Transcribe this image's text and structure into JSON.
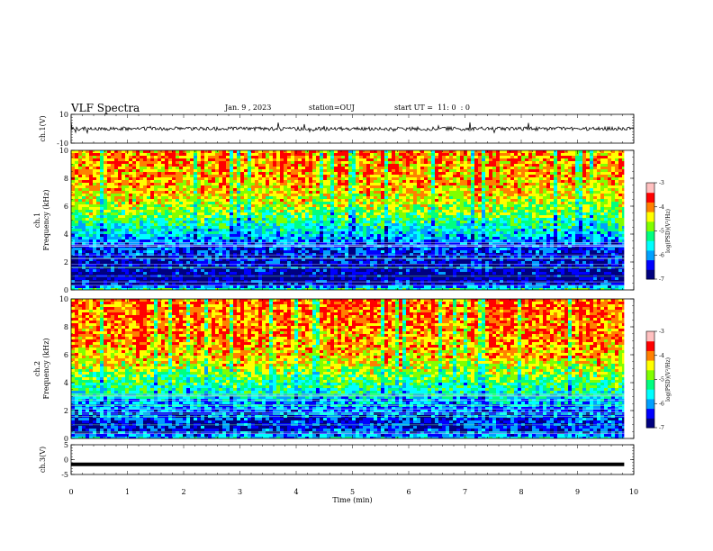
{
  "header": {
    "title": "VLF Spectra",
    "date": "Jan. 9 , 2023",
    "station": "station=OUJ",
    "start": "start UT =  11: 0  : 0"
  },
  "colors": {
    "spectrum": [
      "#000080",
      "#0000ff",
      "#00a0ff",
      "#00ffff",
      "#00ff80",
      "#80ff00",
      "#ffff00",
      "#ff8000",
      "#ff0000",
      "#ffc0c0"
    ],
    "trace": "#000000",
    "frame": "#000000"
  },
  "chart_data": [
    {
      "type": "line",
      "ylabel": "ch.1(V)",
      "ylim": [
        -10,
        10
      ],
      "y_ticks": [
        "10",
        "-10"
      ],
      "x_range": [
        0,
        10
      ],
      "signal_level": 0,
      "signal_range": [
        -10,
        10
      ]
    },
    {
      "type": "heatmap",
      "ylabel": "ch.1\nFrequency (kHz)",
      "ylim": [
        0,
        10
      ],
      "y_ticks": [
        "0",
        "2",
        "4",
        "6",
        "8",
        "10"
      ],
      "x_range": [
        0,
        9.83
      ],
      "power_profile": [
        {
          "f": 0,
          "log_psd": -4.6
        },
        {
          "f": 0.5,
          "log_psd": -6.6
        },
        {
          "f": 1,
          "log_psd": -6.8
        },
        {
          "f": 2,
          "log_psd": -6.5
        },
        {
          "f": 3,
          "log_psd": -6.3
        },
        {
          "f": 4,
          "log_psd": -5.7
        },
        {
          "f": 5,
          "log_psd": -5.1
        },
        {
          "f": 6,
          "log_psd": -4.5
        },
        {
          "f": 7,
          "log_psd": -4.1
        },
        {
          "f": 8,
          "log_psd": -3.9
        },
        {
          "f": 10,
          "log_psd": -3.8
        }
      ],
      "colorbar": {
        "label": "log(PSD)(V²/Hz)",
        "range": [
          -7,
          -3
        ],
        "ticks": [
          "-3",
          "-4",
          "-5",
          "-6",
          "-7"
        ]
      }
    },
    {
      "type": "heatmap",
      "ylabel": "ch.2\nFrequency (kHz)",
      "ylim": [
        0,
        10
      ],
      "y_ticks": [
        "0",
        "2",
        "4",
        "6",
        "8",
        "10"
      ],
      "x_range": [
        0,
        9.83
      ],
      "power_profile": [
        {
          "f": 0,
          "log_psd": -5.4
        },
        {
          "f": 0.5,
          "log_psd": -6.2
        },
        {
          "f": 1,
          "log_psd": -6.4
        },
        {
          "f": 2,
          "log_psd": -6.0
        },
        {
          "f": 3,
          "log_psd": -5.6
        },
        {
          "f": 4,
          "log_psd": -5.0
        },
        {
          "f": 5,
          "log_psd": -4.5
        },
        {
          "f": 6,
          "log_psd": -4.0
        },
        {
          "f": 7,
          "log_psd": -3.8
        },
        {
          "f": 10,
          "log_psd": -3.6
        }
      ],
      "colorbar": {
        "label": "log(PSD)(V²/Hz)",
        "range": [
          -7,
          -3
        ],
        "ticks": [
          "-3",
          "-4",
          "-5",
          "-6",
          "-7"
        ]
      }
    },
    {
      "type": "line",
      "ylabel": "ch.3(V)",
      "ylim": [
        -5,
        5
      ],
      "y_ticks": [
        "5",
        "0",
        "-5"
      ],
      "x_range": [
        0,
        9.83
      ],
      "signal_level": -1.6
    }
  ],
  "xaxis": {
    "label": "Time (min)",
    "range": [
      0,
      10
    ],
    "ticks": [
      "0",
      "1",
      "2",
      "3",
      "4",
      "5",
      "6",
      "7",
      "8",
      "9",
      "10"
    ]
  }
}
